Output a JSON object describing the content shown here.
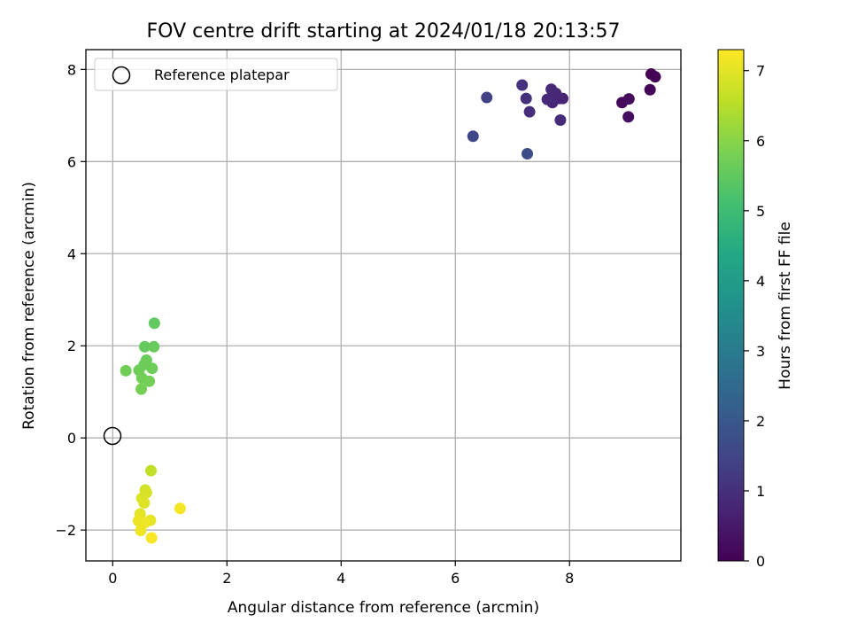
{
  "chart_data": {
    "type": "scatter",
    "title": "FOV centre drift starting at 2024/01/18 20:13:57",
    "xlabel": "Angular distance from reference (arcmin)",
    "ylabel": "Rotation from reference (arcmin)",
    "xlim": [
      -0.47,
      9.95
    ],
    "ylim": [
      -2.67,
      8.43
    ],
    "xticks": [
      0,
      2,
      4,
      6,
      8
    ],
    "yticks": [
      -2,
      0,
      2,
      4,
      6,
      8
    ],
    "grid": true,
    "legend": {
      "placement": "top-left",
      "entries": [
        "Reference platepar"
      ]
    },
    "reference_point": {
      "x": 0,
      "y": 0,
      "label": "Reference platepar"
    },
    "colorbar": {
      "label": "Hours from first FF file",
      "colormap": "viridis",
      "range": [
        0,
        7.3
      ],
      "ticks": [
        0,
        1,
        2,
        3,
        4,
        5,
        6,
        7
      ]
    },
    "points": [
      {
        "x": 9.43,
        "y": 7.9,
        "t": 0.0
      },
      {
        "x": 9.5,
        "y": 7.84,
        "t": 0.05
      },
      {
        "x": 9.41,
        "y": 7.56,
        "t": 0.1
      },
      {
        "x": 8.92,
        "y": 7.28,
        "t": 0.15
      },
      {
        "x": 9.04,
        "y": 7.36,
        "t": 0.2
      },
      {
        "x": 9.03,
        "y": 6.97,
        "t": 0.25
      },
      {
        "x": 7.88,
        "y": 7.37,
        "t": 0.7
      },
      {
        "x": 7.82,
        "y": 7.37,
        "t": 0.75
      },
      {
        "x": 7.7,
        "y": 7.28,
        "t": 0.8
      },
      {
        "x": 7.76,
        "y": 7.48,
        "t": 0.82
      },
      {
        "x": 7.68,
        "y": 7.57,
        "t": 0.85
      },
      {
        "x": 7.61,
        "y": 7.35,
        "t": 0.88
      },
      {
        "x": 7.84,
        "y": 6.9,
        "t": 0.9
      },
      {
        "x": 7.3,
        "y": 7.08,
        "t": 0.95
      },
      {
        "x": 7.24,
        "y": 7.37,
        "t": 1.0
      },
      {
        "x": 7.17,
        "y": 7.66,
        "t": 1.05
      },
      {
        "x": 6.55,
        "y": 7.39,
        "t": 1.4
      },
      {
        "x": 6.31,
        "y": 6.55,
        "t": 1.55
      },
      {
        "x": 7.26,
        "y": 6.17,
        "t": 1.65
      },
      {
        "x": 0.73,
        "y": 2.49,
        "t": 5.5
      },
      {
        "x": 0.56,
        "y": 1.98,
        "t": 5.55
      },
      {
        "x": 0.72,
        "y": 1.98,
        "t": 5.6
      },
      {
        "x": 0.59,
        "y": 1.69,
        "t": 5.62
      },
      {
        "x": 0.55,
        "y": 1.59,
        "t": 5.64
      },
      {
        "x": 0.69,
        "y": 1.51,
        "t": 5.66
      },
      {
        "x": 0.46,
        "y": 1.47,
        "t": 5.68
      },
      {
        "x": 0.23,
        "y": 1.46,
        "t": 5.7
      },
      {
        "x": 0.51,
        "y": 1.3,
        "t": 5.72
      },
      {
        "x": 0.64,
        "y": 1.23,
        "t": 5.74
      },
      {
        "x": 0.5,
        "y": 1.06,
        "t": 5.76
      },
      {
        "x": 0.67,
        "y": -0.71,
        "t": 6.6
      },
      {
        "x": 0.57,
        "y": -1.13,
        "t": 6.8
      },
      {
        "x": 0.59,
        "y": -1.19,
        "t": 6.85
      },
      {
        "x": 0.51,
        "y": -1.31,
        "t": 6.9
      },
      {
        "x": 0.55,
        "y": -1.41,
        "t": 6.95
      },
      {
        "x": 1.18,
        "y": -1.53,
        "t": 7.2
      },
      {
        "x": 0.48,
        "y": -1.65,
        "t": 7.0
      },
      {
        "x": 0.66,
        "y": -1.79,
        "t": 7.05
      },
      {
        "x": 0.45,
        "y": -1.8,
        "t": 7.1
      },
      {
        "x": 0.56,
        "y": -1.84,
        "t": 7.12
      },
      {
        "x": 0.49,
        "y": -2.01,
        "t": 7.15
      },
      {
        "x": 0.68,
        "y": -2.17,
        "t": 7.25
      }
    ]
  }
}
